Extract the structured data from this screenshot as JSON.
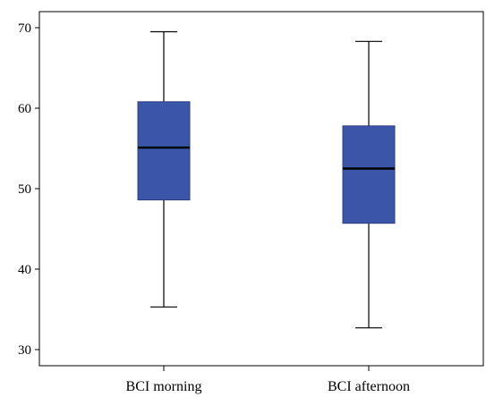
{
  "chart_data": {
    "type": "boxplot",
    "title": "",
    "xlabel": "",
    "ylabel": "",
    "ylim": [
      28,
      72
    ],
    "yticks": [
      30,
      40,
      50,
      60,
      70
    ],
    "grid": false,
    "legend": "none",
    "box_color": "#3b55a8",
    "box_edge_color": "#2c3e80",
    "categories": [
      "BCI morning",
      "BCI afternoon"
    ],
    "series": [
      {
        "category": "BCI morning",
        "min": 35.3,
        "q1": 48.6,
        "median": 55.1,
        "q3": 60.8,
        "max": 69.5
      },
      {
        "category": "BCI afternoon",
        "min": 32.7,
        "q1": 45.7,
        "median": 52.5,
        "q3": 57.8,
        "max": 68.3
      }
    ]
  }
}
